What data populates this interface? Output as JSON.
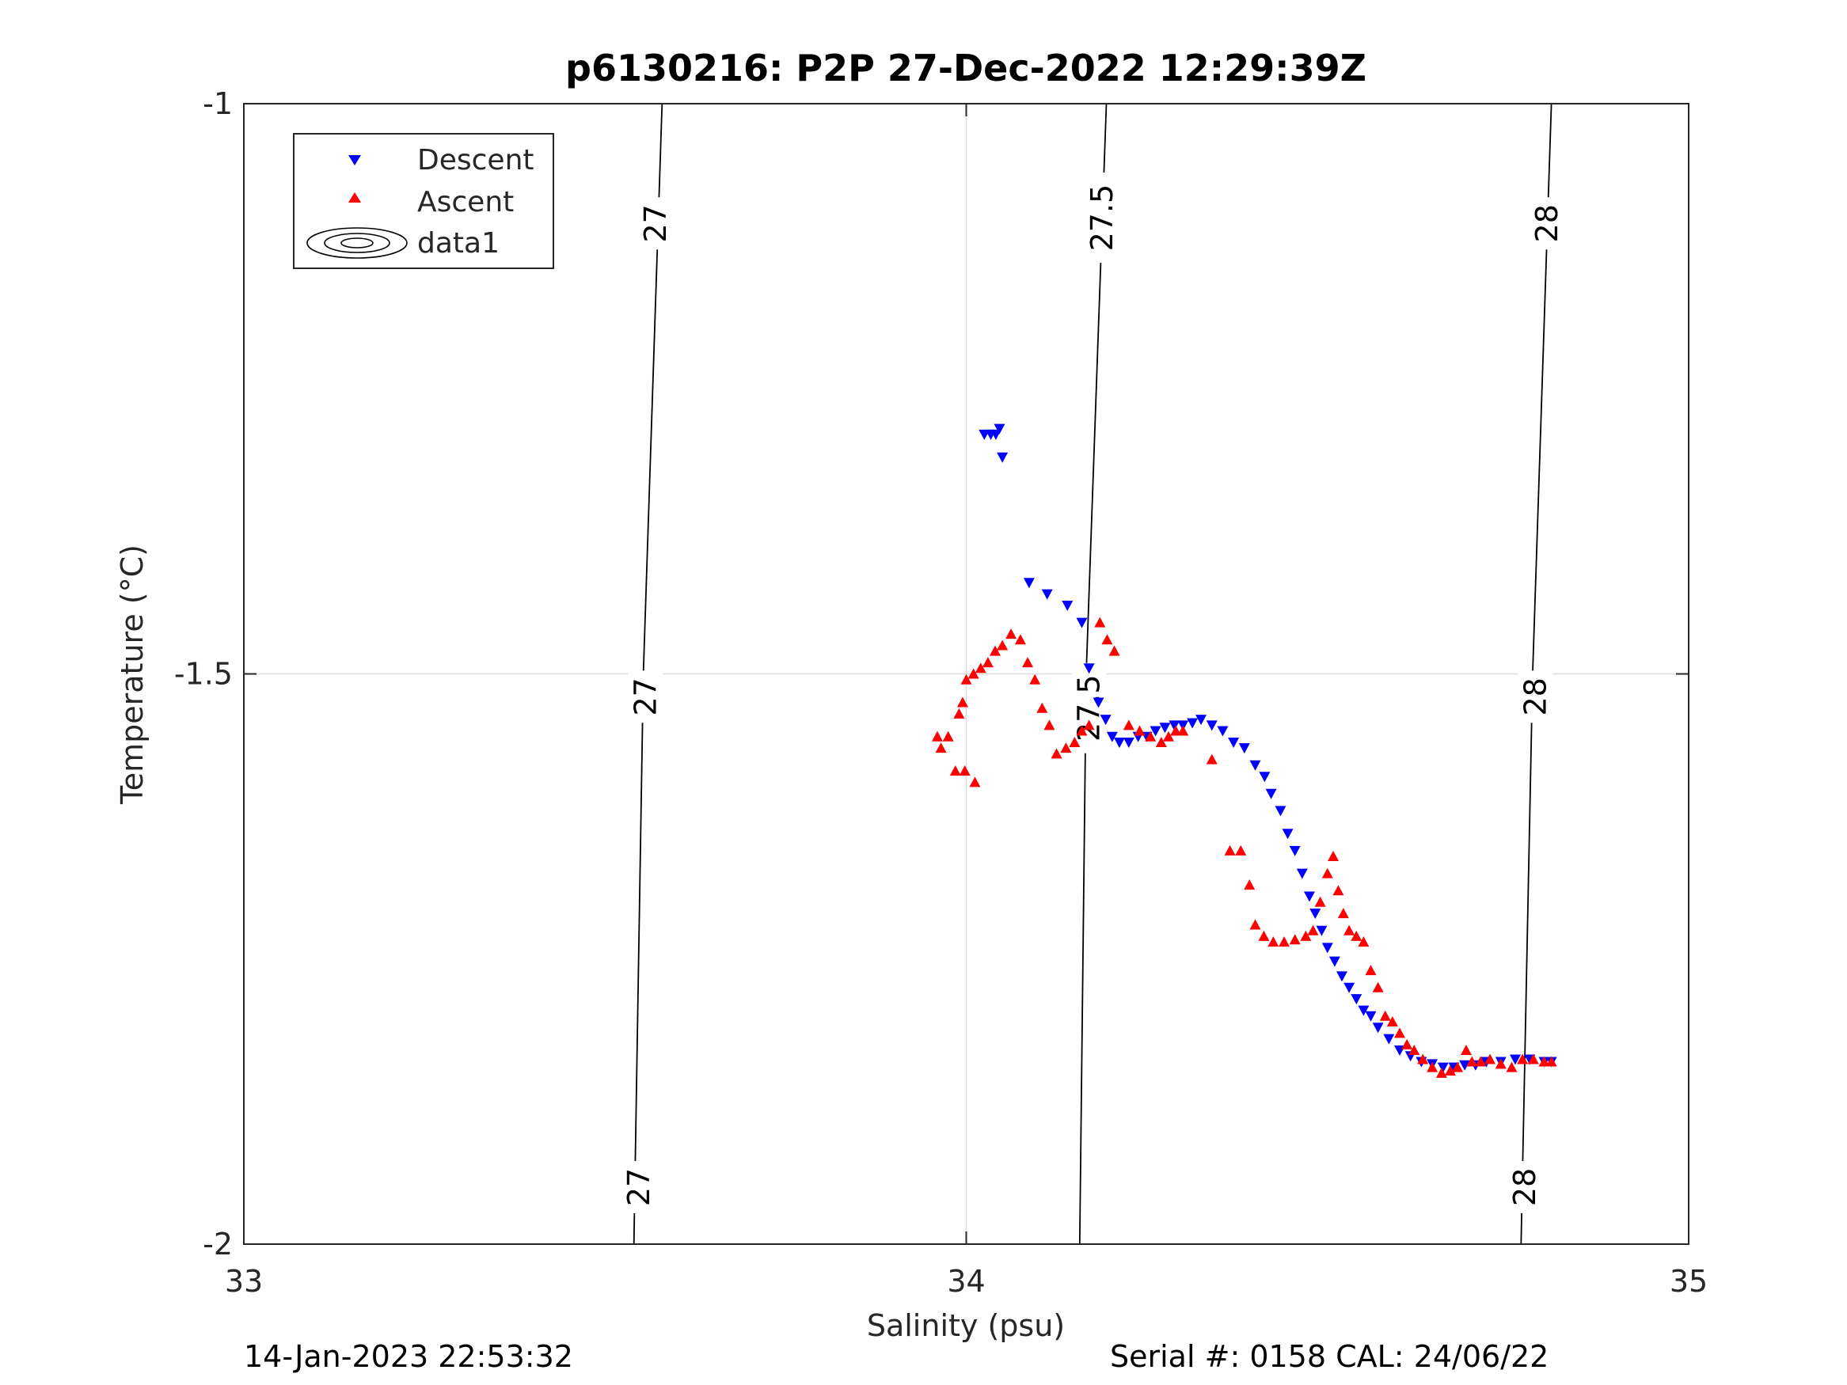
{
  "chart_data": {
    "type": "scatter",
    "title": "p6130216: P2P 27-Dec-2022 12:29:39Z",
    "xlabel": "Salinity (psu)",
    "ylabel": "Temperature (°C)",
    "xlim": [
      33,
      35
    ],
    "ylim": [
      -2,
      -1
    ],
    "x_ticks": [
      "33",
      "34",
      "35"
    ],
    "y_ticks": [
      "-1",
      "-1.5",
      "-2"
    ],
    "grid": true,
    "legend_position": "top-left",
    "legend": [
      "Descent",
      "Ascent",
      "data1"
    ],
    "contours": [
      {
        "label": "27",
        "points": [
          [
            33.579,
            -1.0
          ],
          [
            33.553,
            -1.5
          ],
          [
            33.54,
            -2.0
          ]
        ],
        "label_at": [
          [
            33.57,
            -1.105
          ],
          [
            33.556,
            -1.52
          ],
          [
            33.547,
            -1.95
          ]
        ]
      },
      {
        "label": "27.5",
        "points": [
          [
            34.194,
            -1.0
          ],
          [
            34.166,
            -1.5
          ],
          [
            34.157,
            -2.0
          ]
        ],
        "label_at": [
          [
            34.188,
            -1.1
          ],
          [
            34.17,
            -1.53
          ]
        ]
      },
      {
        "label": "28",
        "points": [
          [
            34.81,
            -1.0
          ],
          [
            34.784,
            -1.5
          ],
          [
            34.768,
            -2.0
          ]
        ],
        "label_at": [
          [
            34.804,
            -1.105
          ],
          [
            34.788,
            -1.52
          ],
          [
            34.773,
            -1.95
          ]
        ]
      }
    ],
    "series": [
      {
        "name": "Descent",
        "color": "#0000ff",
        "marker": "triangle-down",
        "points": [
          [
            34.025,
            -1.29
          ],
          [
            34.034,
            -1.29
          ],
          [
            34.041,
            -1.29
          ],
          [
            34.046,
            -1.285
          ],
          [
            34.05,
            -1.31
          ],
          [
            34.087,
            -1.42
          ],
          [
            34.112,
            -1.43
          ],
          [
            34.14,
            -1.44
          ],
          [
            34.16,
            -1.455
          ],
          [
            34.17,
            -1.495
          ],
          [
            34.183,
            -1.525
          ],
          [
            34.193,
            -1.54
          ],
          [
            34.202,
            -1.555
          ],
          [
            34.212,
            -1.56
          ],
          [
            34.225,
            -1.56
          ],
          [
            34.238,
            -1.555
          ],
          [
            34.25,
            -1.555
          ],
          [
            34.262,
            -1.55
          ],
          [
            34.275,
            -1.547
          ],
          [
            34.288,
            -1.545
          ],
          [
            34.3,
            -1.545
          ],
          [
            34.313,
            -1.543
          ],
          [
            34.325,
            -1.54
          ],
          [
            34.34,
            -1.545
          ],
          [
            34.355,
            -1.55
          ],
          [
            34.37,
            -1.56
          ],
          [
            34.385,
            -1.565
          ],
          [
            34.4,
            -1.58
          ],
          [
            34.413,
            -1.59
          ],
          [
            34.422,
            -1.605
          ],
          [
            34.435,
            -1.62
          ],
          [
            34.445,
            -1.64
          ],
          [
            34.455,
            -1.655
          ],
          [
            34.465,
            -1.675
          ],
          [
            34.475,
            -1.695
          ],
          [
            34.483,
            -1.71
          ],
          [
            34.492,
            -1.725
          ],
          [
            34.5,
            -1.74
          ],
          [
            34.51,
            -1.752
          ],
          [
            34.52,
            -1.765
          ],
          [
            34.53,
            -1.775
          ],
          [
            34.54,
            -1.785
          ],
          [
            34.55,
            -1.795
          ],
          [
            34.56,
            -1.8
          ],
          [
            34.57,
            -1.81
          ],
          [
            34.585,
            -1.82
          ],
          [
            34.6,
            -1.83
          ],
          [
            34.615,
            -1.835
          ],
          [
            34.63,
            -1.84
          ],
          [
            34.645,
            -1.842
          ],
          [
            34.66,
            -1.845
          ],
          [
            34.675,
            -1.845
          ],
          [
            34.69,
            -1.843
          ],
          [
            34.705,
            -1.843
          ],
          [
            34.72,
            -1.84
          ],
          [
            34.74,
            -1.84
          ],
          [
            34.76,
            -1.838
          ],
          [
            34.78,
            -1.838
          ],
          [
            34.8,
            -1.84
          ],
          [
            34.81,
            -1.84
          ]
        ]
      },
      {
        "name": "Ascent",
        "color": "#ff0000",
        "marker": "triangle-up",
        "points": [
          [
            33.96,
            -1.555
          ],
          [
            33.965,
            -1.565
          ],
          [
            33.975,
            -1.555
          ],
          [
            33.985,
            -1.585
          ],
          [
            33.998,
            -1.585
          ],
          [
            34.012,
            -1.595
          ],
          [
            33.99,
            -1.535
          ],
          [
            33.995,
            -1.525
          ],
          [
            34.0,
            -1.505
          ],
          [
            34.01,
            -1.5
          ],
          [
            34.02,
            -1.495
          ],
          [
            34.03,
            -1.49
          ],
          [
            34.04,
            -1.48
          ],
          [
            34.05,
            -1.475
          ],
          [
            34.062,
            -1.465
          ],
          [
            34.075,
            -1.47
          ],
          [
            34.085,
            -1.49
          ],
          [
            34.095,
            -1.505
          ],
          [
            34.105,
            -1.53
          ],
          [
            34.115,
            -1.545
          ],
          [
            34.125,
            -1.57
          ],
          [
            34.138,
            -1.565
          ],
          [
            34.15,
            -1.56
          ],
          [
            34.16,
            -1.55
          ],
          [
            34.17,
            -1.545
          ],
          [
            34.185,
            -1.455
          ],
          [
            34.195,
            -1.47
          ],
          [
            34.205,
            -1.48
          ],
          [
            34.225,
            -1.545
          ],
          [
            34.24,
            -1.55
          ],
          [
            34.255,
            -1.555
          ],
          [
            34.27,
            -1.56
          ],
          [
            34.28,
            -1.555
          ],
          [
            34.29,
            -1.55
          ],
          [
            34.3,
            -1.55
          ],
          [
            34.34,
            -1.575
          ],
          [
            34.365,
            -1.655
          ],
          [
            34.38,
            -1.655
          ],
          [
            34.392,
            -1.685
          ],
          [
            34.4,
            -1.72
          ],
          [
            34.412,
            -1.73
          ],
          [
            34.425,
            -1.735
          ],
          [
            34.44,
            -1.735
          ],
          [
            34.455,
            -1.733
          ],
          [
            34.47,
            -1.73
          ],
          [
            34.48,
            -1.725
          ],
          [
            34.49,
            -1.7
          ],
          [
            34.5,
            -1.675
          ],
          [
            34.508,
            -1.66
          ],
          [
            34.515,
            -1.69
          ],
          [
            34.522,
            -1.71
          ],
          [
            34.53,
            -1.725
          ],
          [
            34.54,
            -1.73
          ],
          [
            34.55,
            -1.735
          ],
          [
            34.56,
            -1.76
          ],
          [
            34.57,
            -1.775
          ],
          [
            34.58,
            -1.8
          ],
          [
            34.59,
            -1.805
          ],
          [
            34.6,
            -1.815
          ],
          [
            34.61,
            -1.825
          ],
          [
            34.62,
            -1.83
          ],
          [
            34.632,
            -1.838
          ],
          [
            34.645,
            -1.845
          ],
          [
            34.658,
            -1.85
          ],
          [
            34.67,
            -1.848
          ],
          [
            34.68,
            -1.845
          ],
          [
            34.692,
            -1.83
          ],
          [
            34.7,
            -1.84
          ],
          [
            34.712,
            -1.84
          ],
          [
            34.725,
            -1.838
          ],
          [
            34.74,
            -1.842
          ],
          [
            34.755,
            -1.845
          ],
          [
            34.77,
            -1.838
          ],
          [
            34.785,
            -1.838
          ],
          [
            34.8,
            -1.84
          ],
          [
            34.81,
            -1.84
          ]
        ]
      }
    ]
  },
  "footer": {
    "timestamp": "14-Jan-2023 22:53:32",
    "serial_cal": "Serial #: 0158  CAL: 24/06/22"
  }
}
